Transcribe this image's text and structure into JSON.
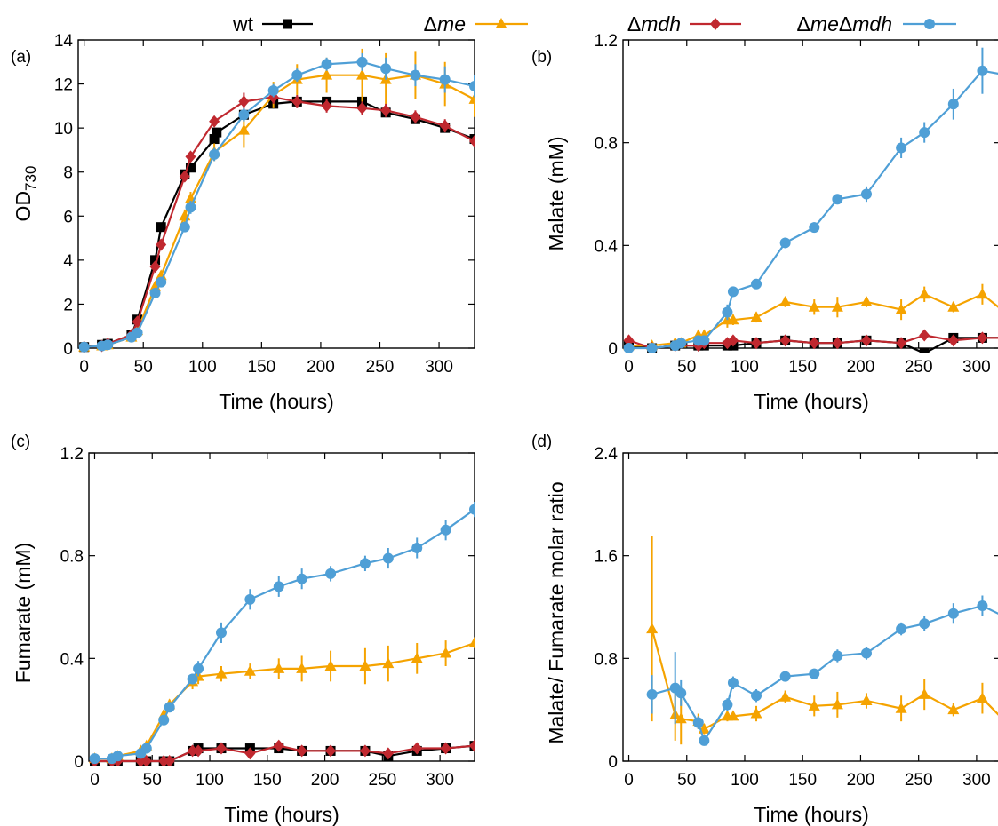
{
  "legend": {
    "entries": [
      {
        "prefix": "",
        "italic": "",
        "suffix": "wt",
        "series": "wt"
      },
      {
        "prefix": "Δ",
        "italic": "me",
        "suffix": "",
        "series": "me"
      },
      {
        "prefix": "Δ",
        "italic": "mdh",
        "suffix": "",
        "series": "mdh"
      },
      {
        "prefix": "Δ",
        "italic": "me",
        "mid": "Δ",
        "italic2": "mdh",
        "series": "memdh"
      }
    ]
  },
  "colors": {
    "wt": "#000000",
    "me": "#f5a300",
    "mdh": "#c0282f",
    "memdh": "#4f9fd6"
  },
  "markers": {
    "wt": "square",
    "me": "triangle",
    "mdh": "diamond",
    "memdh": "circle"
  },
  "chart_data": [
    {
      "panel": "(a)",
      "type": "line",
      "xlabel": "Time (hours)",
      "ylabel_main": "OD",
      "ylabel_sub": "730",
      "xlim": [
        -5,
        330
      ],
      "ylim": [
        0,
        14
      ],
      "xticks": [
        0,
        50,
        100,
        150,
        200,
        250,
        300
      ],
      "yticks": [
        0,
        2,
        4,
        6,
        8,
        10,
        12,
        14
      ],
      "ytick_labels": [
        "0",
        "2",
        "4",
        "6",
        "8",
        "10",
        "12",
        "14"
      ],
      "series": [
        {
          "key": "wt",
          "name": "wt",
          "x": [
            0,
            15,
            20,
            40,
            45,
            60,
            65,
            85,
            90,
            110,
            112,
            135,
            160,
            180,
            205,
            235,
            255,
            280,
            305,
            330
          ],
          "y": [
            0.05,
            0.15,
            0.2,
            0.6,
            1.3,
            4.0,
            5.5,
            7.9,
            8.2,
            9.5,
            9.8,
            10.6,
            11.1,
            11.2,
            11.2,
            11.2,
            10.7,
            10.4,
            10.0,
            9.5
          ],
          "err": [
            0.05,
            0.05,
            0.05,
            0.1,
            0.15,
            0.2,
            0.2,
            0.2,
            0.2,
            0.2,
            0.2,
            0.2,
            0.2,
            0.2,
            0.2,
            0.2,
            0.2,
            0.2,
            0.2,
            0.2
          ]
        },
        {
          "key": "me",
          "name": "Δme",
          "x": [
            0,
            15,
            20,
            40,
            45,
            60,
            65,
            85,
            90,
            110,
            135,
            160,
            180,
            205,
            235,
            255,
            280,
            305,
            330
          ],
          "y": [
            0.05,
            0.1,
            0.15,
            0.5,
            0.8,
            2.8,
            3.3,
            6.0,
            6.8,
            8.9,
            9.9,
            11.5,
            12.2,
            12.4,
            12.4,
            12.2,
            12.4,
            12.0,
            11.3
          ],
          "err": [
            0.05,
            0.05,
            0.05,
            0.1,
            0.1,
            0.2,
            0.2,
            0.3,
            0.3,
            0.4,
            0.8,
            0.6,
            0.7,
            0.8,
            1.2,
            1.2,
            1.1,
            1.0,
            0.8
          ]
        },
        {
          "key": "mdh",
          "name": "Δmdh",
          "x": [
            0,
            15,
            20,
            40,
            45,
            60,
            65,
            85,
            90,
            110,
            135,
            160,
            180,
            205,
            235,
            255,
            280,
            305,
            330
          ],
          "y": [
            0.05,
            0.1,
            0.2,
            0.6,
            1.2,
            3.7,
            4.7,
            7.8,
            8.7,
            10.3,
            11.2,
            11.4,
            11.2,
            11.0,
            10.9,
            10.8,
            10.5,
            10.1,
            9.4
          ],
          "err": [
            0.05,
            0.05,
            0.05,
            0.1,
            0.15,
            0.2,
            0.2,
            0.2,
            0.2,
            0.2,
            0.4,
            0.3,
            0.3,
            0.3,
            0.3,
            0.3,
            0.3,
            0.3,
            0.2
          ]
        },
        {
          "key": "memdh",
          "name": "ΔmeΔmdh",
          "x": [
            0,
            15,
            20,
            40,
            45,
            60,
            65,
            85,
            90,
            110,
            135,
            160,
            180,
            205,
            235,
            255,
            280,
            305,
            330
          ],
          "y": [
            0.05,
            0.1,
            0.15,
            0.5,
            0.7,
            2.5,
            3.0,
            5.5,
            6.4,
            8.8,
            10.6,
            11.7,
            12.4,
            12.9,
            13.0,
            12.7,
            12.4,
            12.2,
            11.9
          ],
          "err": [
            0.05,
            0.05,
            0.05,
            0.1,
            0.1,
            0.2,
            0.2,
            0.2,
            0.3,
            0.3,
            0.3,
            0.3,
            0.3,
            0.3,
            0.4,
            0.5,
            0.5,
            0.6,
            0.5
          ]
        }
      ]
    },
    {
      "panel": "(b)",
      "type": "line",
      "xlabel": "Time (hours)",
      "ylabel": "Malate (mM)",
      "xlim": [
        -5,
        320
      ],
      "ylim": [
        0,
        1.2
      ],
      "xticks": [
        0,
        50,
        100,
        150,
        200,
        250,
        300
      ],
      "yticks": [
        0,
        0.4,
        0.8,
        1.2
      ],
      "ytick_labels": [
        "0",
        "0.4",
        "0.8",
        "1.2"
      ],
      "series": [
        {
          "key": "wt",
          "name": "wt",
          "x": [
            0,
            20,
            40,
            60,
            65,
            85,
            90,
            110,
            135,
            160,
            180,
            205,
            235,
            255,
            280,
            305,
            330
          ],
          "y": [
            0.01,
            0.0,
            0.01,
            0.01,
            0.01,
            0.01,
            0.01,
            0.02,
            0.03,
            0.02,
            0.02,
            0.03,
            0.02,
            -0.02,
            0.04,
            0.04,
            0.04
          ],
          "err": [
            0.02,
            0.01,
            0.01,
            0.01,
            0.01,
            0.01,
            0.01,
            0.01,
            0.01,
            0.01,
            0.01,
            0.01,
            0.01,
            0.01,
            0.01,
            0.01,
            0.01
          ]
        },
        {
          "key": "me",
          "name": "Δme",
          "x": [
            0,
            20,
            40,
            45,
            60,
            65,
            85,
            90,
            110,
            135,
            160,
            180,
            205,
            235,
            255,
            280,
            305,
            330
          ],
          "y": [
            0.01,
            0.01,
            0.02,
            0.02,
            0.05,
            0.05,
            0.11,
            0.11,
            0.12,
            0.18,
            0.16,
            0.16,
            0.18,
            0.15,
            0.21,
            0.16,
            0.21,
            0.12
          ],
          "err": [
            0.01,
            0.01,
            0.01,
            0.01,
            0.02,
            0.02,
            0.03,
            0.02,
            0.02,
            0.02,
            0.03,
            0.04,
            0.02,
            0.04,
            0.03,
            0.02,
            0.04,
            0.05
          ]
        },
        {
          "key": "mdh",
          "name": "Δmdh",
          "x": [
            0,
            20,
            40,
            60,
            65,
            85,
            90,
            110,
            135,
            160,
            180,
            205,
            235,
            255,
            280,
            305,
            330
          ],
          "y": [
            0.03,
            0.0,
            0.01,
            0.01,
            0.02,
            0.02,
            0.03,
            0.02,
            0.03,
            0.02,
            0.02,
            0.03,
            0.02,
            0.05,
            0.03,
            0.04,
            0.04
          ],
          "err": [
            0.02,
            0.01,
            0.01,
            0.01,
            0.01,
            0.01,
            0.01,
            0.01,
            0.01,
            0.01,
            0.01,
            0.01,
            0.01,
            0.01,
            0.01,
            0.01,
            0.01
          ]
        },
        {
          "key": "memdh",
          "name": "ΔmeΔmdh",
          "x": [
            0,
            20,
            40,
            45,
            60,
            65,
            85,
            90,
            110,
            135,
            160,
            180,
            205,
            235,
            255,
            280,
            305,
            330
          ],
          "y": [
            0.0,
            0.0,
            0.01,
            0.02,
            0.03,
            0.03,
            0.14,
            0.22,
            0.25,
            0.41,
            0.47,
            0.58,
            0.6,
            0.78,
            0.84,
            0.95,
            1.08,
            1.06
          ],
          "err": [
            0.01,
            0.01,
            0.01,
            0.01,
            0.02,
            0.02,
            0.03,
            0.02,
            0.02,
            0.02,
            0.02,
            0.02,
            0.03,
            0.04,
            0.04,
            0.06,
            0.09,
            0.07
          ]
        }
      ]
    },
    {
      "panel": "(c)",
      "type": "line",
      "xlabel": "Time (hours)",
      "ylabel": "Fumarate (mM)",
      "xlim": [
        -5,
        330
      ],
      "ylim": [
        0,
        1.2
      ],
      "xticks": [
        0,
        50,
        100,
        150,
        200,
        250,
        300
      ],
      "yticks": [
        0,
        0.4,
        0.8,
        1.2
      ],
      "ytick_labels": [
        "0",
        "0.4",
        "0.8",
        "1.2"
      ],
      "series": [
        {
          "key": "wt",
          "name": "wt",
          "x": [
            0,
            15,
            20,
            40,
            45,
            60,
            65,
            85,
            90,
            110,
            135,
            160,
            180,
            205,
            235,
            255,
            280,
            305,
            330
          ],
          "y": [
            0.0,
            0.0,
            0.0,
            0.0,
            0.0,
            0.0,
            0.0,
            0.04,
            0.05,
            0.05,
            0.05,
            0.05,
            0.04,
            0.04,
            0.04,
            0.02,
            0.04,
            0.05,
            0.06
          ],
          "err": [
            0.01,
            0.01,
            0.01,
            0.01,
            0.01,
            0.01,
            0.01,
            0.01,
            0.01,
            0.01,
            0.01,
            0.01,
            0.01,
            0.01,
            0.01,
            0.01,
            0.01,
            0.01,
            0.01
          ]
        },
        {
          "key": "me",
          "name": "Δme",
          "x": [
            0,
            15,
            20,
            40,
            45,
            60,
            65,
            85,
            90,
            110,
            135,
            160,
            180,
            205,
            235,
            255,
            280,
            305,
            330
          ],
          "y": [
            0.01,
            0.01,
            0.02,
            0.04,
            0.06,
            0.18,
            0.22,
            0.31,
            0.33,
            0.34,
            0.35,
            0.36,
            0.36,
            0.37,
            0.37,
            0.38,
            0.4,
            0.42,
            0.46
          ],
          "err": [
            0.01,
            0.01,
            0.01,
            0.01,
            0.01,
            0.02,
            0.02,
            0.03,
            0.03,
            0.03,
            0.03,
            0.04,
            0.05,
            0.06,
            0.07,
            0.07,
            0.06,
            0.05,
            0.02
          ]
        },
        {
          "key": "mdh",
          "name": "Δmdh",
          "x": [
            0,
            15,
            20,
            40,
            45,
            60,
            65,
            85,
            90,
            110,
            135,
            160,
            180,
            205,
            235,
            255,
            280,
            305,
            330
          ],
          "y": [
            0.0,
            0.0,
            0.0,
            0.0,
            0.0,
            0.0,
            0.0,
            0.04,
            0.04,
            0.05,
            0.03,
            0.06,
            0.04,
            0.04,
            0.04,
            0.03,
            0.05,
            0.05,
            0.06
          ],
          "err": [
            0.01,
            0.01,
            0.01,
            0.01,
            0.01,
            0.01,
            0.01,
            0.01,
            0.01,
            0.01,
            0.01,
            0.01,
            0.01,
            0.01,
            0.01,
            0.01,
            0.01,
            0.01,
            0.01
          ]
        },
        {
          "key": "memdh",
          "name": "ΔmeΔmdh",
          "x": [
            0,
            15,
            20,
            40,
            45,
            60,
            65,
            85,
            90,
            110,
            135,
            160,
            180,
            205,
            235,
            255,
            280,
            305,
            330
          ],
          "y": [
            0.01,
            0.01,
            0.02,
            0.03,
            0.05,
            0.16,
            0.21,
            0.32,
            0.36,
            0.5,
            0.63,
            0.68,
            0.71,
            0.73,
            0.77,
            0.79,
            0.83,
            0.9,
            0.98
          ],
          "err": [
            0.01,
            0.01,
            0.01,
            0.01,
            0.01,
            0.02,
            0.02,
            0.02,
            0.03,
            0.04,
            0.04,
            0.04,
            0.04,
            0.03,
            0.03,
            0.04,
            0.04,
            0.04,
            0.03
          ]
        }
      ]
    },
    {
      "panel": "(d)",
      "type": "line",
      "xlabel": "Time (hours)",
      "ylabel": "Malate/ Fumarate molar ratio",
      "xlim": [
        -5,
        320
      ],
      "ylim": [
        0,
        2.4
      ],
      "xticks": [
        0,
        50,
        100,
        150,
        200,
        250,
        300
      ],
      "yticks": [
        0,
        0.8,
        1.6,
        2.4
      ],
      "ytick_labels": [
        "0",
        "0.8",
        "1.6",
        "2.4"
      ],
      "series": [
        {
          "key": "me",
          "name": "Δme",
          "x": [
            20,
            40,
            45,
            60,
            65,
            85,
            90,
            110,
            135,
            160,
            180,
            205,
            235,
            255,
            280,
            305,
            330
          ],
          "y": [
            1.03,
            0.36,
            0.33,
            0.31,
            0.25,
            0.35,
            0.35,
            0.37,
            0.5,
            0.43,
            0.44,
            0.47,
            0.41,
            0.52,
            0.4,
            0.49,
            0.26
          ],
          "err": [
            0.72,
            0.2,
            0.2,
            0.06,
            0.04,
            0.04,
            0.03,
            0.06,
            0.05,
            0.08,
            0.1,
            0.06,
            0.1,
            0.12,
            0.05,
            0.12,
            0.15
          ]
        },
        {
          "key": "memdh",
          "name": "ΔmeΔmdh",
          "x": [
            20,
            40,
            45,
            60,
            65,
            85,
            90,
            110,
            135,
            160,
            180,
            205,
            235,
            255,
            280,
            305,
            330
          ],
          "y": [
            0.52,
            0.57,
            0.53,
            0.3,
            0.16,
            0.44,
            0.61,
            0.51,
            0.66,
            0.68,
            0.82,
            0.84,
            1.03,
            1.07,
            1.15,
            1.21,
            1.1
          ],
          "err": [
            0.15,
            0.28,
            0.1,
            0.05,
            0.03,
            0.05,
            0.05,
            0.05,
            0.04,
            0.04,
            0.05,
            0.05,
            0.05,
            0.06,
            0.08,
            0.08,
            0.08
          ]
        }
      ]
    }
  ]
}
